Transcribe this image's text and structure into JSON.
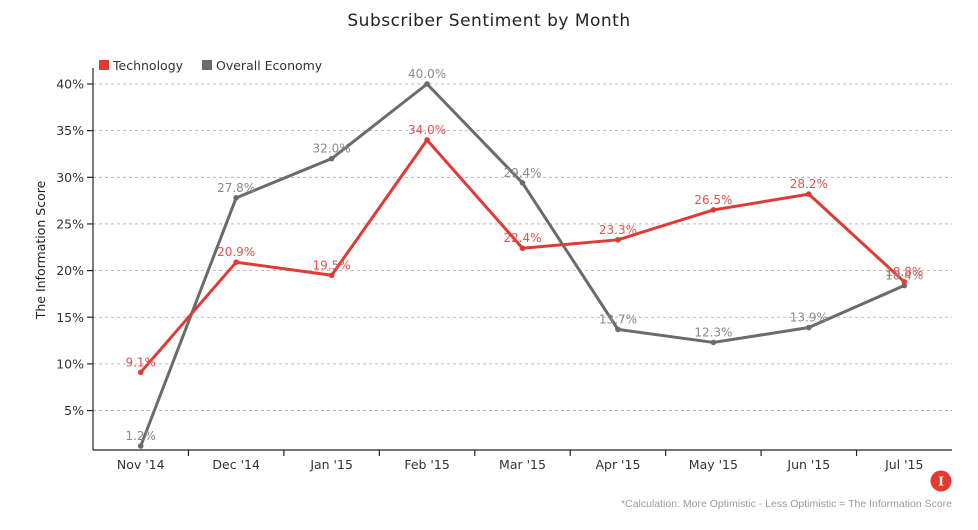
{
  "chart_data": {
    "type": "line",
    "title": "Subscriber Sentiment by Month",
    "xlabel": "",
    "ylabel": "The Information Score",
    "categories": [
      "Nov '14",
      "Dec '14",
      "Jan '15",
      "Feb '15",
      "Mar '15",
      "Apr '15",
      "May '15",
      "Jun '15",
      "Jul '15"
    ],
    "series": [
      {
        "name": "Technology",
        "color": "#e03a35",
        "label_color": "#e05350",
        "values": [
          9.1,
          20.9,
          19.5,
          34.0,
          22.4,
          23.3,
          26.5,
          28.2,
          18.8
        ]
      },
      {
        "name": "Overall Economy",
        "color": "#6b6b6b",
        "label_color": "#8a8a8a",
        "values": [
          1.2,
          27.8,
          32.0,
          40.0,
          29.4,
          13.7,
          12.3,
          13.9,
          18.4
        ]
      }
    ],
    "yticks": [
      5,
      10,
      15,
      20,
      25,
      30,
      35,
      40
    ],
    "ytick_format": "%",
    "ylim": [
      0.8,
      41
    ],
    "grid": true,
    "legend_position": "top-left",
    "data_labels": true,
    "footnote": "*Calculation: More Optimistic - Less Optimistic = The Information Score"
  },
  "logo": {
    "glyph": "I",
    "color": "#e63a2e"
  }
}
